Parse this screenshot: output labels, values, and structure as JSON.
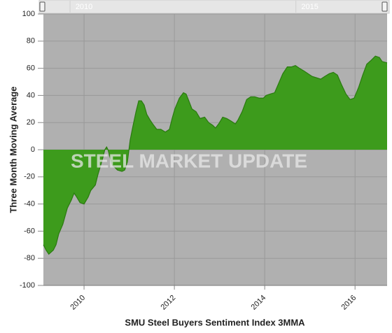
{
  "chart_data": {
    "type": "area",
    "x_label": "SMU Steel Buyers Sentiment Index 3MMA",
    "y_label": "Three Month Moving Average",
    "watermark": "STEEL MARKET UPDATE",
    "x": [
      2009.1,
      2009.16,
      2009.22,
      2009.32,
      2009.38,
      2009.44,
      2009.53,
      2009.63,
      2009.72,
      2009.78,
      2009.84,
      2009.91,
      2010.0,
      2010.09,
      2010.15,
      2010.25,
      2010.31,
      2010.4,
      2010.46,
      2010.5,
      2010.53,
      2010.62,
      2010.68,
      2010.74,
      2010.84,
      2010.9,
      2010.96,
      2011.02,
      2011.08,
      2011.15,
      2011.21,
      2011.27,
      2011.33,
      2011.39,
      2011.46,
      2011.52,
      2011.61,
      2011.7,
      2011.8,
      2011.89,
      2011.95,
      2012.01,
      2012.11,
      2012.2,
      2012.26,
      2012.32,
      2012.39,
      2012.48,
      2012.57,
      2012.67,
      2012.76,
      2012.85,
      2012.91,
      2012.98,
      2013.07,
      2013.16,
      2013.26,
      2013.35,
      2013.41,
      2013.5,
      2013.6,
      2013.69,
      2013.78,
      2013.88,
      2013.97,
      2014.03,
      2014.12,
      2014.22,
      2014.31,
      2014.4,
      2014.5,
      2014.59,
      2014.68,
      2014.77,
      2014.87,
      2014.96,
      2015.05,
      2015.15,
      2015.24,
      2015.33,
      2015.43,
      2015.52,
      2015.61,
      2015.7,
      2015.8,
      2015.89,
      2015.98,
      2016.08,
      2016.17,
      2016.26,
      2016.36,
      2016.45,
      2016.54,
      2016.6,
      2016.71
    ],
    "series": [
      {
        "color": "#3d9b1c",
        "line_color": "#2a7a10",
        "values": [
          -70,
          -74,
          -77,
          -74,
          -70,
          -62,
          -55,
          -43,
          -37,
          -32,
          -35,
          -39,
          -40,
          -35,
          -30,
          -26,
          -18,
          -8,
          0,
          2,
          0,
          -11,
          -13,
          -15,
          -16,
          -15,
          -9,
          7,
          17,
          28,
          36,
          36,
          33,
          26,
          22,
          19,
          15,
          15,
          13,
          15,
          23,
          30,
          38,
          42,
          41,
          36,
          30,
          28,
          23,
          24,
          20,
          18,
          16,
          19,
          24,
          23,
          21,
          19,
          22,
          28,
          37,
          39,
          39,
          38,
          38,
          40,
          41,
          42,
          49,
          56,
          61,
          61,
          62,
          60,
          58,
          56,
          54,
          53,
          52,
          54,
          56,
          57,
          55,
          48,
          41,
          37,
          38,
          46,
          55,
          63,
          66,
          69,
          68,
          65,
          64
        ]
      }
    ],
    "xlim": [
      2009.1,
      2016.71
    ],
    "xticks": [
      2010,
      2012,
      2014,
      2016
    ],
    "ylim": [
      -100,
      100
    ],
    "yticks": [
      -100,
      -80,
      -60,
      -40,
      -20,
      0,
      20,
      40,
      60,
      80,
      100
    ],
    "navigator_ticks": [
      2010,
      2015
    ],
    "grid": true
  }
}
